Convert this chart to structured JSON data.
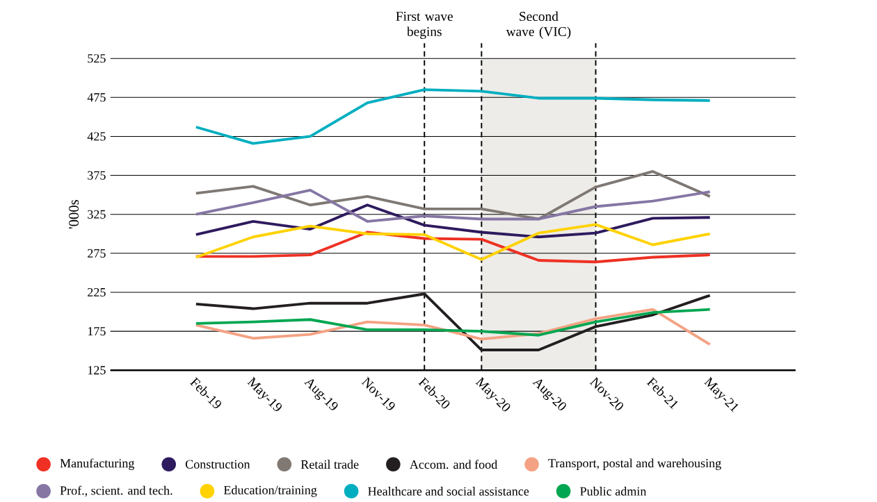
{
  "chart_data": {
    "type": "line",
    "ylabel": "'000s",
    "categories": [
      "Feb-19",
      "May-19",
      "Aug-19",
      "Nov-19",
      "Feb-20",
      "May-20",
      "Aug-20",
      "Nov-20",
      "Feb-21",
      "May-21"
    ],
    "series": [
      {
        "name": "Manufacturing",
        "color": "#ee3124",
        "values": [
          271,
          271,
          273,
          302,
          294,
          293,
          266,
          264,
          270,
          273
        ]
      },
      {
        "name": "Construction",
        "color": "#2e1a5e",
        "values": [
          299,
          316,
          306,
          337,
          311,
          302,
          296,
          301,
          320,
          321
        ]
      },
      {
        "name": "Retail trade",
        "color": "#7f7873",
        "values": [
          352,
          361,
          337,
          348,
          332,
          332,
          319,
          360,
          380,
          348
        ]
      },
      {
        "name": "Accom. and food",
        "color": "#231f20",
        "values": [
          210,
          204,
          211,
          211,
          223,
          151,
          151,
          181,
          196,
          221
        ]
      },
      {
        "name": "Transport, postal and warehousing",
        "color": "#f4a283",
        "values": [
          183,
          166,
          171,
          187,
          183,
          165,
          172,
          191,
          203,
          158
        ]
      },
      {
        "name": "Prof., scient. and tech.",
        "color": "#8576a4",
        "values": [
          325,
          340,
          356,
          316,
          323,
          319,
          319,
          335,
          342,
          354
        ]
      },
      {
        "name": "Education/training",
        "color": "#ffd200",
        "values": [
          270,
          296,
          310,
          300,
          299,
          267,
          301,
          312,
          286,
          300
        ]
      },
      {
        "name": "Healthcare and social assistance",
        "color": "#00aec0",
        "values": [
          437,
          416,
          425,
          468,
          485,
          483,
          474,
          474,
          472,
          471
        ]
      },
      {
        "name": "Public admin",
        "color": "#00a651",
        "values": [
          185,
          187,
          190,
          177,
          177,
          175,
          170,
          187,
          199,
          203
        ]
      }
    ],
    "ylim": [
      125,
      525
    ],
    "yticks": [
      125,
      175,
      225,
      275,
      325,
      375,
      425,
      475,
      525
    ],
    "grid": "y",
    "legend": "bottom",
    "line_style": "solid",
    "ref_lines": [
      {
        "axis": "x",
        "value": "Feb-20",
        "label": "First wave begins",
        "line_style": "dashed"
      },
      {
        "axis": "x",
        "value": "May-20",
        "line_style": "dashed"
      },
      {
        "axis": "x",
        "value": "Nov-20",
        "line_style": "dashed"
      }
    ],
    "bands": [
      {
        "axis": "x",
        "from": "May-20",
        "to": "Nov-20",
        "label": "Second wave (VIC)",
        "color": "#edece8"
      }
    ]
  }
}
